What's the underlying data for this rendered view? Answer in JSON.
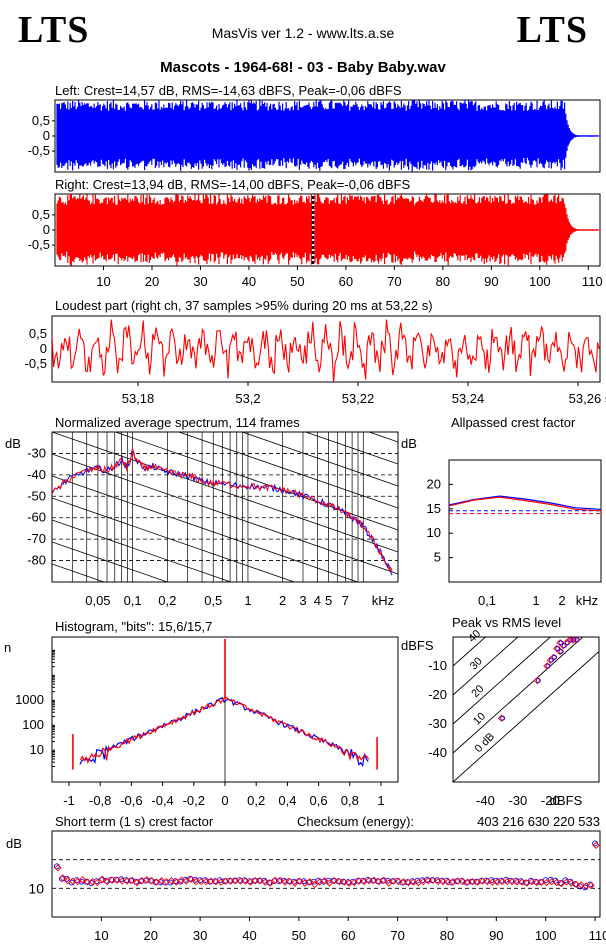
{
  "header": {
    "logo_left": "LTS",
    "logo_right": "LTS",
    "app_title": "MasVis ver 1.2 - www.lts.a.se",
    "file_title": "Mascots - 1964-68! - 03 - Baby Baby.wav"
  },
  "colors": {
    "left_channel": "#0000ff",
    "right_channel": "#ff0000",
    "grid": "#000000"
  },
  "chart_data": [
    {
      "id": "left_wave",
      "type": "area",
      "title": "Left: Crest=14,57 dB, RMS=-14,63 dBFS, Peak=-0,06 dBFS",
      "series": [
        {
          "name": "Left",
          "color": "#0000ff"
        }
      ],
      "ylim": [
        -1,
        1
      ],
      "yticks": [
        "0.5",
        "0",
        "-0.5"
      ],
      "duration_s": 110.5
    },
    {
      "id": "right_wave",
      "type": "area",
      "title": "Right: Crest=13,94 dB, RMS=-14,00 dBFS, Peak=-0,06 dBFS",
      "series": [
        {
          "name": "Right",
          "color": "#ff0000"
        }
      ],
      "ylim": [
        -1,
        1
      ],
      "yticks": [
        "0.5",
        "0",
        "-0.5"
      ],
      "xticks": [
        "10",
        "20",
        "30",
        "40",
        "50",
        "60",
        "70",
        "80",
        "90",
        "100",
        "110 s"
      ],
      "marker_s": 53.22
    },
    {
      "id": "loudest",
      "type": "line",
      "title": "Loudest part (right ch, 37 samples >95% during 20 ms at 53,22 s)",
      "ylim": [
        -1,
        1
      ],
      "yticks": [
        "0.5",
        "0",
        "-0.5"
      ],
      "xticks": [
        "53,18",
        "53,2",
        "53,22",
        "53,24",
        "53,26 s"
      ],
      "xlim": [
        53.21,
        53.23
      ]
    },
    {
      "id": "spectrum",
      "type": "line",
      "title": "Normalized average spectrum, 114 frames",
      "ylabel": "dB",
      "yticks": [
        "-30",
        "-40",
        "-50",
        "-60",
        "-70",
        "-80"
      ],
      "xticks": [
        "0,05",
        "0,1",
        "0,2",
        "0,5",
        "1",
        "2",
        "3",
        "4",
        "5",
        "7",
        "kHz"
      ],
      "ylim": [
        -90,
        -20
      ],
      "xlim_khz": [
        0.02,
        20
      ],
      "points": [
        [
          0.02,
          -49
        ],
        [
          0.025,
          -44
        ],
        [
          0.03,
          -41
        ],
        [
          0.04,
          -38
        ],
        [
          0.05,
          -37
        ],
        [
          0.06,
          -38
        ],
        [
          0.07,
          -36
        ],
        [
          0.08,
          -33
        ],
        [
          0.09,
          -37
        ],
        [
          0.1,
          -29
        ],
        [
          0.11,
          -34
        ],
        [
          0.13,
          -37
        ],
        [
          0.15,
          -36
        ],
        [
          0.18,
          -38
        ],
        [
          0.22,
          -39
        ],
        [
          0.27,
          -40
        ],
        [
          0.33,
          -41
        ],
        [
          0.4,
          -43
        ],
        [
          0.5,
          -44
        ],
        [
          0.6,
          -44
        ],
        [
          0.8,
          -45
        ],
        [
          1.0,
          -45
        ],
        [
          1.3,
          -46
        ],
        [
          1.6,
          -46
        ],
        [
          2.0,
          -47
        ],
        [
          2.5,
          -48
        ],
        [
          3.0,
          -50
        ],
        [
          4.0,
          -52
        ],
        [
          5.0,
          -54
        ],
        [
          6.0,
          -56
        ],
        [
          7.0,
          -58
        ],
        [
          8.0,
          -60
        ],
        [
          9.0,
          -62
        ],
        [
          10.0,
          -64
        ],
        [
          12.0,
          -70
        ],
        [
          14.0,
          -76
        ],
        [
          16.0,
          -82
        ],
        [
          18.0,
          -86
        ]
      ]
    },
    {
      "id": "allpass",
      "type": "line",
      "title": "Allpassed crest factor",
      "ylabel": "dB",
      "yticks": [
        "20",
        "15",
        "10",
        "5"
      ],
      "xticks": [
        "0,1",
        "1",
        "2",
        "kHz"
      ],
      "ylim": [
        0,
        25
      ],
      "left_values": [
        15.8,
        16.9,
        17.6,
        17.0,
        16.2,
        15.2,
        14.9
      ],
      "right_values": [
        15.6,
        16.8,
        17.4,
        16.7,
        15.9,
        14.9,
        14.6
      ],
      "left_ref": 14.6,
      "right_ref": 14.0
    },
    {
      "id": "histogram",
      "type": "line",
      "title": "Histogram, \"bits\": 15,6/15,7",
      "ylabel": "n",
      "yticks": [
        "1000",
        "100",
        "10"
      ],
      "xticks": [
        "-1",
        "-0,8",
        "-0,6",
        "-0,4",
        "-0,2",
        "0",
        "0,2",
        "0,4",
        "0,6",
        "0,8",
        "1"
      ],
      "ylim_log": [
        1,
        100000
      ],
      "points": [
        [
          -0.96,
          3
        ],
        [
          -0.8,
          12
        ],
        [
          -0.6,
          40
        ],
        [
          -0.4,
          140
        ],
        [
          -0.2,
          420
        ],
        [
          0,
          1000
        ],
        [
          0.2,
          420
        ],
        [
          0.4,
          140
        ],
        [
          0.6,
          40
        ],
        [
          0.8,
          12
        ],
        [
          0.96,
          3
        ]
      ]
    },
    {
      "id": "peak_rms",
      "type": "scatter",
      "title": "Peak vs RMS level",
      "ylabel": "dBFS",
      "xlabel": "dBFS",
      "yticks": [
        "-10",
        "-20",
        "-30",
        "-40"
      ],
      "xticks": [
        "-40",
        "-30",
        "-20"
      ],
      "xlim": [
        -50,
        -5
      ],
      "ylim": [
        -50,
        0
      ],
      "diag_labels": [
        "40",
        "30",
        "20",
        "10",
        "0 dB"
      ],
      "points": [
        [
          -35,
          -28
        ],
        [
          -24,
          -15
        ],
        [
          -21,
          -10
        ],
        [
          -19,
          -7
        ],
        [
          -17,
          -5
        ],
        [
          -16,
          -3
        ],
        [
          -15,
          -2
        ],
        [
          -14,
          -1
        ],
        [
          -13,
          -1
        ],
        [
          -12,
          -1
        ],
        [
          -17,
          -2
        ],
        [
          -18,
          -4
        ],
        [
          -20,
          -8
        ]
      ]
    },
    {
      "id": "short_term",
      "type": "scatter",
      "title": "Short term (1 s) crest factor",
      "checksum_label": "Checksum (energy):",
      "checksum_value": "403 216 630 220 533",
      "ylabel": "dB",
      "yticks": [
        "10"
      ],
      "xticks": [
        "10",
        "20",
        "30",
        "40",
        "50",
        "60",
        "70",
        "80",
        "90",
        "100",
        "110 s"
      ],
      "xlim": [
        0,
        111
      ],
      "ylim": [
        4,
        22
      ],
      "left_values": [
        14.6,
        12.0,
        12.0,
        11.2,
        11.7,
        11.4,
        11.4,
        11.1,
        11.5,
        11.7,
        11.6,
        11.8,
        11.8,
        11.9,
        11.7,
        11.6,
        11.4,
        11.5,
        11.6,
        11.6,
        11.3,
        11.3,
        11.2,
        11.2,
        11.5,
        11.4,
        11.8,
        12.0,
        11.8,
        11.7,
        11.7,
        11.4,
        11.5,
        11.7,
        11.5,
        11.6,
        11.6,
        11.7,
        11.7,
        11.5,
        11.6,
        11.6,
        11.6,
        11.2,
        11.5,
        11.5,
        11.6,
        11.5,
        11.4,
        11.5,
        11.5,
        11.2,
        11.4,
        11.6,
        11.4,
        11.6,
        11.6,
        11.5,
        11.4,
        11.3,
        11.4,
        11.6,
        11.6,
        11.8,
        11.6,
        11.5,
        11.6,
        11.6,
        11.5,
        11.6,
        11.2,
        11.3,
        11.5,
        11.6,
        11.7,
        11.8,
        11.7,
        11.7,
        11.6,
        11.6,
        11.2,
        11.5,
        11.6,
        11.2,
        11.4,
        11.4,
        11.6,
        11.6,
        11.7,
        11.6,
        11.6,
        11.8,
        11.6,
        11.6,
        11.5,
        11.2,
        11.6,
        11.4,
        11.3,
        11.7,
        11.8,
        11.6,
        11.1,
        11.7,
        11.4,
        10.9,
        10.4,
        10.2,
        10.8,
        19.4
      ],
      "right_values": [
        14.3,
        12.2,
        11.6,
        11.5,
        11.4,
        11.8,
        11.3,
        11.4,
        11.2,
        11.9,
        11.4,
        11.7,
        11.7,
        11.5,
        11.5,
        11.7,
        11.2,
        11.6,
        11.8,
        11.6,
        11.3,
        11.6,
        11.4,
        11.6,
        11.3,
        11.7,
        11.5,
        11.9,
        11.4,
        11.4,
        11.4,
        11.5,
        11.4,
        11.3,
        11.5,
        11.5,
        11.6,
        11.5,
        11.5,
        11.3,
        11.6,
        11.6,
        11.3,
        11.1,
        11.7,
        11.7,
        11.3,
        11.4,
        11.1,
        11.5,
        11.1,
        11.4,
        10.8,
        11.3,
        11.6,
        11.1,
        11.6,
        11.4,
        11.3,
        11.1,
        11.2,
        11.5,
        11.4,
        11.6,
        11.7,
        11.4,
        11.7,
        11.1,
        11.5,
        11.4,
        11.4,
        11.2,
        11.3,
        11.2,
        11.4,
        11.6,
        11.7,
        11.4,
        11.4,
        11.3,
        11.4,
        11.5,
        11.4,
        11.3,
        11.4,
        11.3,
        11.5,
        11.4,
        11.3,
        11.3,
        11.4,
        11.4,
        11.4,
        11.3,
        11.3,
        11.1,
        11.4,
        11.2,
        11.3,
        11.2,
        11.4,
        11.2,
        11.0,
        11.3,
        11.1,
        10.8,
        10.7,
        10.5,
        10.6,
        19.0
      ]
    }
  ]
}
